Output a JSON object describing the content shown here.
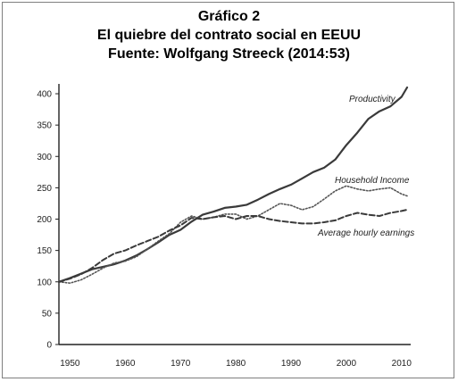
{
  "title_lines": [
    "Gráfico 2",
    "El quiebre del contrato social en EEUU",
    "Fuente: Wolfgang Streeck (2014:53)"
  ],
  "chart_data": {
    "type": "line",
    "title": "Gráfico 2",
    "subtitle": "El quiebre del contrato social en EEUU",
    "source": "Fuente: Wolfgang Streeck (2014:53)",
    "xlabel": "",
    "ylabel": "",
    "xlim": [
      1948,
      2011
    ],
    "ylim": [
      0,
      410
    ],
    "x_ticks": [
      1950,
      1960,
      1970,
      1980,
      1990,
      2000,
      2010
    ],
    "y_ticks": [
      0,
      50,
      100,
      150,
      200,
      250,
      300,
      350,
      400
    ],
    "grid": false,
    "legend": "inline labels",
    "series": [
      {
        "name": "Productivity",
        "style": "solid",
        "x": [
          1948,
          1950,
          1952,
          1954,
          1956,
          1958,
          1960,
          1962,
          1964,
          1966,
          1968,
          1970,
          1972,
          1974,
          1976,
          1978,
          1980,
          1982,
          1984,
          1986,
          1988,
          1990,
          1992,
          1994,
          1996,
          1998,
          2000,
          2002,
          2004,
          2006,
          2008,
          2010,
          2011
        ],
        "values": [
          100,
          106,
          113,
          120,
          124,
          128,
          134,
          142,
          152,
          163,
          175,
          183,
          196,
          207,
          212,
          218,
          220,
          223,
          231,
          240,
          248,
          255,
          265,
          275,
          282,
          295,
          318,
          338,
          360,
          372,
          380,
          395,
          410
        ]
      },
      {
        "name": "Household Income",
        "style": "dotted",
        "x": [
          1948,
          1950,
          1952,
          1954,
          1956,
          1958,
          1960,
          1962,
          1964,
          1966,
          1968,
          1970,
          1972,
          1974,
          1976,
          1978,
          1980,
          1982,
          1984,
          1986,
          1988,
          1990,
          1992,
          1994,
          1996,
          1998,
          2000,
          2002,
          2004,
          2006,
          2008,
          2010,
          2011
        ],
        "values": [
          100,
          98,
          103,
          112,
          122,
          130,
          133,
          140,
          152,
          165,
          177,
          195,
          205,
          200,
          203,
          208,
          208,
          200,
          205,
          215,
          225,
          222,
          215,
          220,
          232,
          245,
          253,
          248,
          245,
          248,
          250,
          240,
          237
        ]
      },
      {
        "name": "Average hourly earnings",
        "style": "dashed",
        "x": [
          1948,
          1950,
          1952,
          1954,
          1956,
          1958,
          1960,
          1962,
          1964,
          1966,
          1968,
          1970,
          1972,
          1974,
          1976,
          1978,
          1980,
          1982,
          1984,
          1986,
          1988,
          1990,
          1992,
          1994,
          1996,
          1998,
          2000,
          2002,
          2004,
          2006,
          2008,
          2010,
          2011
        ],
        "values": [
          100,
          105,
          112,
          122,
          135,
          145,
          150,
          158,
          165,
          172,
          182,
          190,
          202,
          200,
          203,
          205,
          200,
          205,
          205,
          200,
          197,
          195,
          193,
          193,
          195,
          198,
          205,
          210,
          207,
          205,
          210,
          213,
          215
        ]
      }
    ]
  }
}
